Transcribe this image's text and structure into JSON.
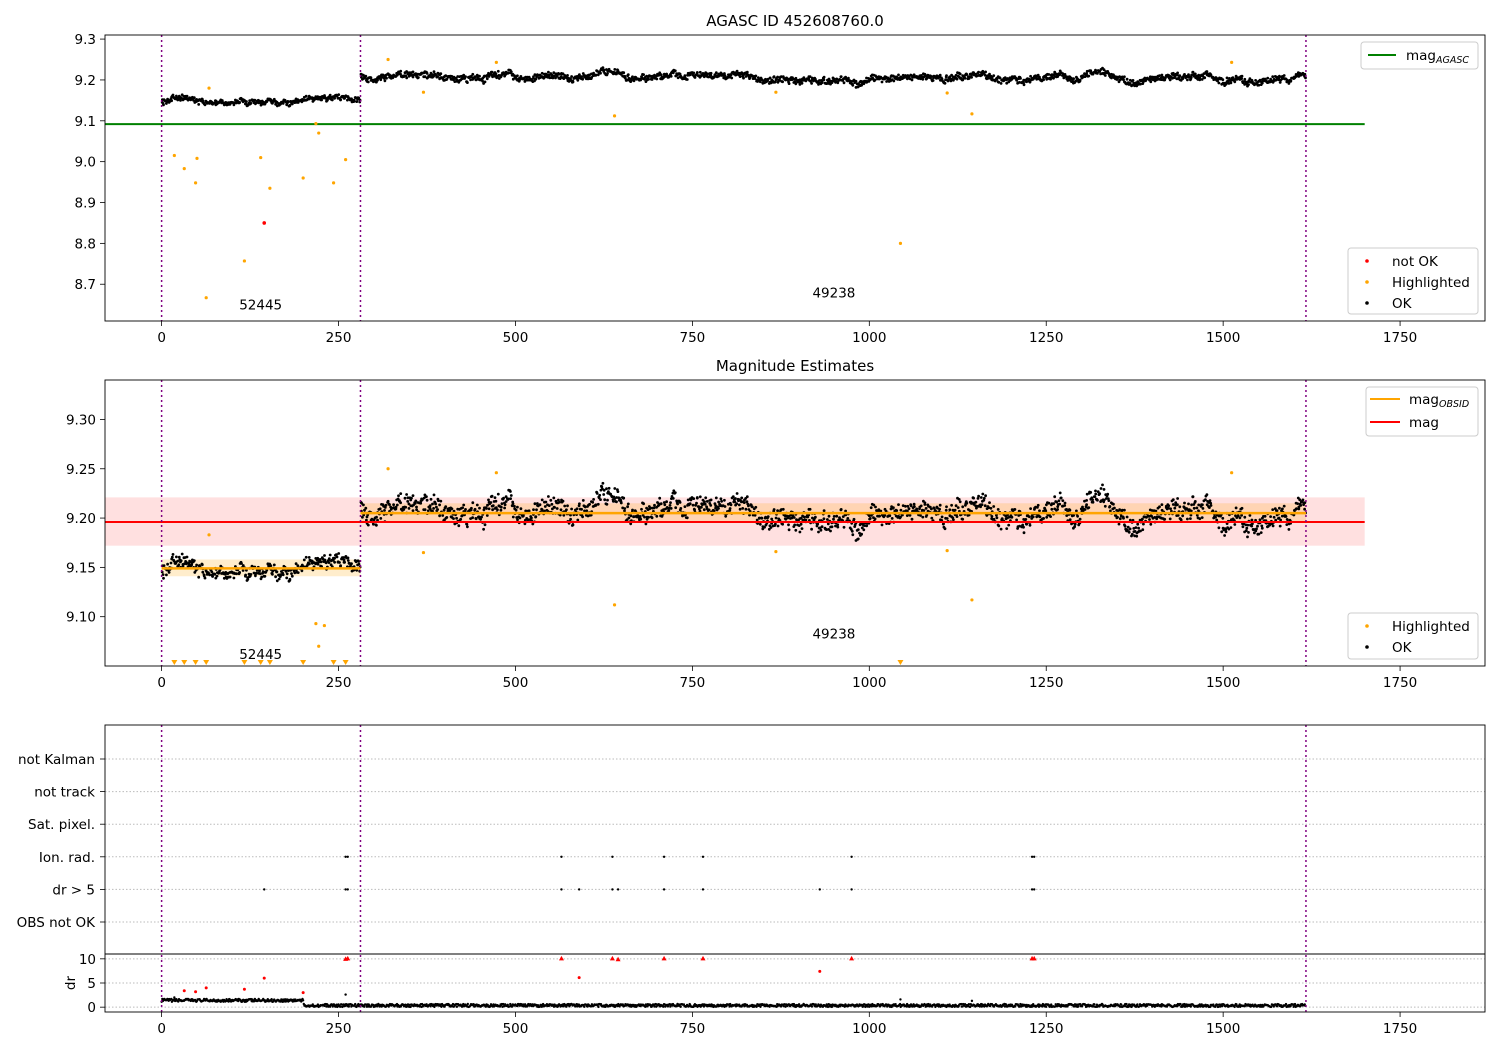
{
  "chart_data": [
    {
      "type": "scatter",
      "title": "AGASC ID 452608760.0",
      "xlim": [
        -80,
        1870
      ],
      "ylim": [
        8.61,
        9.31
      ],
      "xticks": [
        0,
        250,
        500,
        750,
        1000,
        1250,
        1500,
        1750
      ],
      "yticks": [
        8.7,
        8.8,
        8.9,
        9.0,
        9.1,
        9.2,
        9.3
      ],
      "ytick_labels": [
        "8.7",
        "8.8",
        "8.9",
        "9.0",
        "9.1",
        "9.2",
        "9.3"
      ],
      "obs_boundaries": [
        0,
        281,
        1617
      ],
      "obs_labels": [
        {
          "text": "52445",
          "x": 140,
          "y": 8.65
        },
        {
          "text": "49238",
          "x": 950,
          "y": 8.68
        }
      ],
      "mag_agasc": {
        "value": 9.092,
        "x": [
          -80,
          1700
        ]
      },
      "ok_segments": [
        {
          "x0": 0,
          "x1": 281,
          "base": 9.15,
          "spread": 0.008
        },
        {
          "x0": 281,
          "x1": 1617,
          "base": 9.205,
          "spread": 0.01
        }
      ],
      "highlighted": [
        [
          18,
          9.015
        ],
        [
          32,
          8.983
        ],
        [
          48,
          8.948
        ],
        [
          50,
          9.008
        ],
        [
          63,
          8.667
        ],
        [
          67,
          9.18
        ],
        [
          117,
          8.757
        ],
        [
          140,
          9.01
        ],
        [
          153,
          8.935
        ],
        [
          200,
          8.96
        ],
        [
          218,
          9.093
        ],
        [
          222,
          9.07
        ],
        [
          243,
          8.948
        ],
        [
          260,
          9.005
        ],
        [
          320,
          9.25
        ],
        [
          370,
          9.17
        ],
        [
          473,
          9.243
        ],
        [
          640,
          9.112
        ],
        [
          868,
          9.17
        ],
        [
          1044,
          8.8
        ],
        [
          1110,
          9.168
        ],
        [
          1145,
          9.117
        ],
        [
          1512,
          9.243
        ]
      ],
      "not_ok": [
        [
          145,
          8.85
        ]
      ],
      "legend_top": {
        "position": "upper right",
        "entries": [
          {
            "label": "mag",
            "sub": "AGASC",
            "color": "#008000"
          }
        ]
      },
      "legend_bottom": {
        "position": "lower right",
        "entries": [
          {
            "label": "not OK",
            "color": "#ff0000"
          },
          {
            "label": "Highlighted",
            "color": "#ffa500"
          },
          {
            "label": "OK",
            "color": "#000000"
          }
        ]
      }
    },
    {
      "type": "scatter",
      "title": "Magnitude Estimates",
      "xlim": [
        -80,
        1870
      ],
      "ylim": [
        9.05,
        9.34
      ],
      "xticks": [
        0,
        250,
        500,
        750,
        1000,
        1250,
        1500,
        1750
      ],
      "yticks": [
        9.1,
        9.15,
        9.2,
        9.25,
        9.3
      ],
      "ytick_labels": [
        "9.10",
        "9.15",
        "9.20",
        "9.25",
        "9.30"
      ],
      "obs_boundaries": [
        0,
        281,
        1617
      ],
      "obs_labels": [
        {
          "text": "52445",
          "x": 140,
          "y": 9.062
        },
        {
          "text": "49238",
          "x": 950,
          "y": 9.083
        }
      ],
      "mag": {
        "value": 9.196,
        "band": [
          9.172,
          9.221
        ],
        "x": [
          -80,
          1700
        ]
      },
      "mag_obsid": [
        {
          "x0": 0,
          "x1": 281,
          "value": 9.149,
          "band": [
            9.141,
            9.158
          ]
        },
        {
          "x0": 281,
          "x1": 1617,
          "value": 9.205,
          "band": [
            9.195,
            9.215
          ]
        }
      ],
      "ok_segments": [
        {
          "x0": 0,
          "x1": 281,
          "base": 9.15,
          "spread": 0.008
        },
        {
          "x0": 281,
          "x1": 1617,
          "base": 9.205,
          "spread": 0.012
        }
      ],
      "highlighted": [
        [
          67,
          9.183
        ],
        [
          218,
          9.093
        ],
        [
          222,
          9.07
        ],
        [
          230,
          9.091
        ],
        [
          320,
          9.25
        ],
        [
          370,
          9.165
        ],
        [
          473,
          9.246
        ],
        [
          640,
          9.112
        ],
        [
          868,
          9.166
        ],
        [
          1110,
          9.167
        ],
        [
          1145,
          9.117
        ],
        [
          1512,
          9.246
        ]
      ],
      "below_range": [
        18,
        32,
        48,
        63,
        117,
        140,
        153,
        200,
        243,
        260,
        1044
      ],
      "legend_top": {
        "position": "upper right",
        "entries": [
          {
            "label": "mag",
            "sub": "OBSID",
            "color": "#ffa500"
          },
          {
            "label": "mag",
            "sub": "",
            "color": "#ff0000"
          }
        ]
      },
      "legend_bottom": {
        "position": "lower right",
        "entries": [
          {
            "label": "Highlighted",
            "color": "#ffa500"
          },
          {
            "label": "OK",
            "color": "#000000"
          }
        ]
      }
    },
    {
      "type": "scatter",
      "title": "",
      "xlim": [
        -80,
        1870
      ],
      "xticks": [
        0,
        250,
        500,
        750,
        1000,
        1250,
        1500,
        1750
      ],
      "obs_boundaries": [
        0,
        281,
        1617
      ],
      "flag_rows": [
        "not Kalman",
        "not track",
        "Sat. pixel.",
        "Ion. rad.",
        "dr > 5",
        "OBS not OK"
      ],
      "flag_points": {
        "Ion. rad.": [
          260,
          263,
          565,
          637,
          710,
          765,
          975,
          1230,
          1233
        ],
        "dr > 5": [
          145,
          260,
          263,
          565,
          590,
          637,
          645,
          710,
          765,
          930,
          975,
          1230,
          1233
        ]
      },
      "dr_axis": {
        "label": "dr",
        "ylim": [
          -1,
          11
        ],
        "yticks": [
          0,
          5,
          10
        ]
      },
      "dr_base": {
        "x0": 0,
        "x1": 1617,
        "early_end": 200,
        "early_value": 1.4,
        "late_value": 0.35
      },
      "dr_high": [
        [
          32,
          3.4
        ],
        [
          48,
          3.2
        ],
        [
          63,
          4.0
        ],
        [
          117,
          3.7
        ],
        [
          145,
          6.0
        ],
        [
          200,
          3.0
        ],
        [
          260,
          9.9
        ],
        [
          263,
          10
        ],
        [
          565,
          10
        ],
        [
          590,
          6.1
        ],
        [
          637,
          10
        ],
        [
          645,
          9.8
        ],
        [
          710,
          10
        ],
        [
          765,
          10
        ],
        [
          930,
          7.4
        ],
        [
          975,
          10
        ],
        [
          1230,
          10
        ],
        [
          1233,
          10
        ]
      ],
      "dr_mid": [
        [
          260,
          2.6
        ],
        [
          18,
          2.0
        ],
        [
          1044,
          1.6
        ],
        [
          1145,
          1.3
        ]
      ]
    }
  ]
}
